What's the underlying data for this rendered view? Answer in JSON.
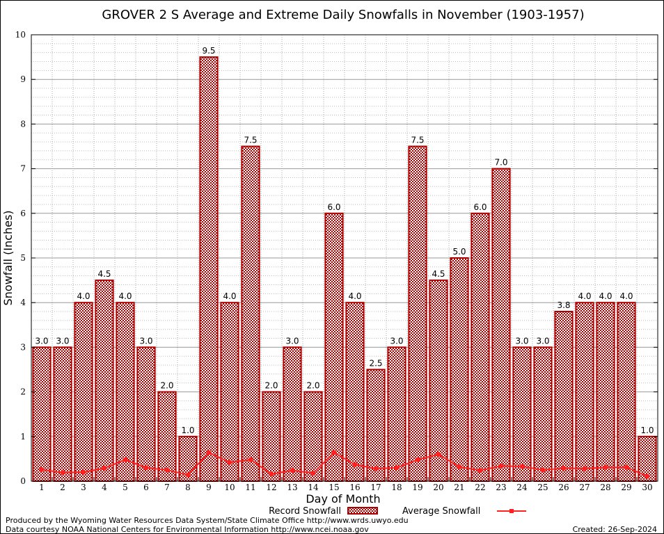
{
  "chart_data": {
    "type": "bar",
    "title": "GROVER 2 S Average and Extreme Daily Snowfalls in November (1903-1957)",
    "xlabel": "Day of Month",
    "ylabel": "Snowfall (Inches)",
    "ylim": [
      0,
      10
    ],
    "yticks": [
      0,
      1,
      2,
      3,
      4,
      5,
      6,
      7,
      8,
      9,
      10
    ],
    "grid": true,
    "legend_placement": "bottom",
    "categories": [
      "1",
      "2",
      "3",
      "4",
      "5",
      "6",
      "7",
      "8",
      "9",
      "10",
      "11",
      "12",
      "13",
      "14",
      "15",
      "16",
      "17",
      "18",
      "19",
      "20",
      "21",
      "22",
      "23",
      "24",
      "25",
      "26",
      "27",
      "28",
      "29",
      "30"
    ],
    "series": [
      {
        "name": "Record Snowfall",
        "type": "bar",
        "color": "#aa0000",
        "values": [
          3.0,
          3.0,
          4.0,
          4.5,
          4.0,
          3.0,
          2.0,
          1.0,
          9.5,
          4.0,
          7.5,
          2.0,
          3.0,
          2.0,
          6.0,
          4.0,
          2.5,
          3.0,
          7.5,
          4.5,
          5.0,
          6.0,
          7.0,
          3.0,
          3.0,
          3.8,
          4.0,
          4.0,
          4.0,
          1.0
        ],
        "labels": [
          "3.0",
          "3.0",
          "4.0",
          "4.5",
          "4.0",
          "3.0",
          "2.0",
          "1.0",
          "9.5",
          "4.0",
          "7.5",
          "2.0",
          "3.0",
          "2.0",
          "6.0",
          "4.0",
          "2.5",
          "3.0",
          "7.5",
          "4.5",
          "5.0",
          "6.0",
          "7.0",
          "3.0",
          "3.0",
          "3.8",
          "4.0",
          "4.0",
          "4.0",
          "1.0"
        ]
      },
      {
        "name": "Average Snowfall",
        "type": "line",
        "color": "#ff2020",
        "values": [
          0.26,
          0.19,
          0.2,
          0.29,
          0.48,
          0.3,
          0.25,
          0.14,
          0.64,
          0.42,
          0.48,
          0.16,
          0.24,
          0.18,
          0.64,
          0.37,
          0.28,
          0.3,
          0.48,
          0.6,
          0.32,
          0.24,
          0.34,
          0.33,
          0.25,
          0.29,
          0.28,
          0.31,
          0.31,
          0.11
        ]
      }
    ]
  },
  "footer": {
    "produced_by": "Produced by the Wyoming Water Resources Data System/State Climate Office http://www.wrds.uwyo.edu",
    "data_courtesy": "Data courtesy NOAA National Centers for Environmental Information http://www.ncei.noaa.gov",
    "created": "Created:  26-Sep-2024"
  }
}
